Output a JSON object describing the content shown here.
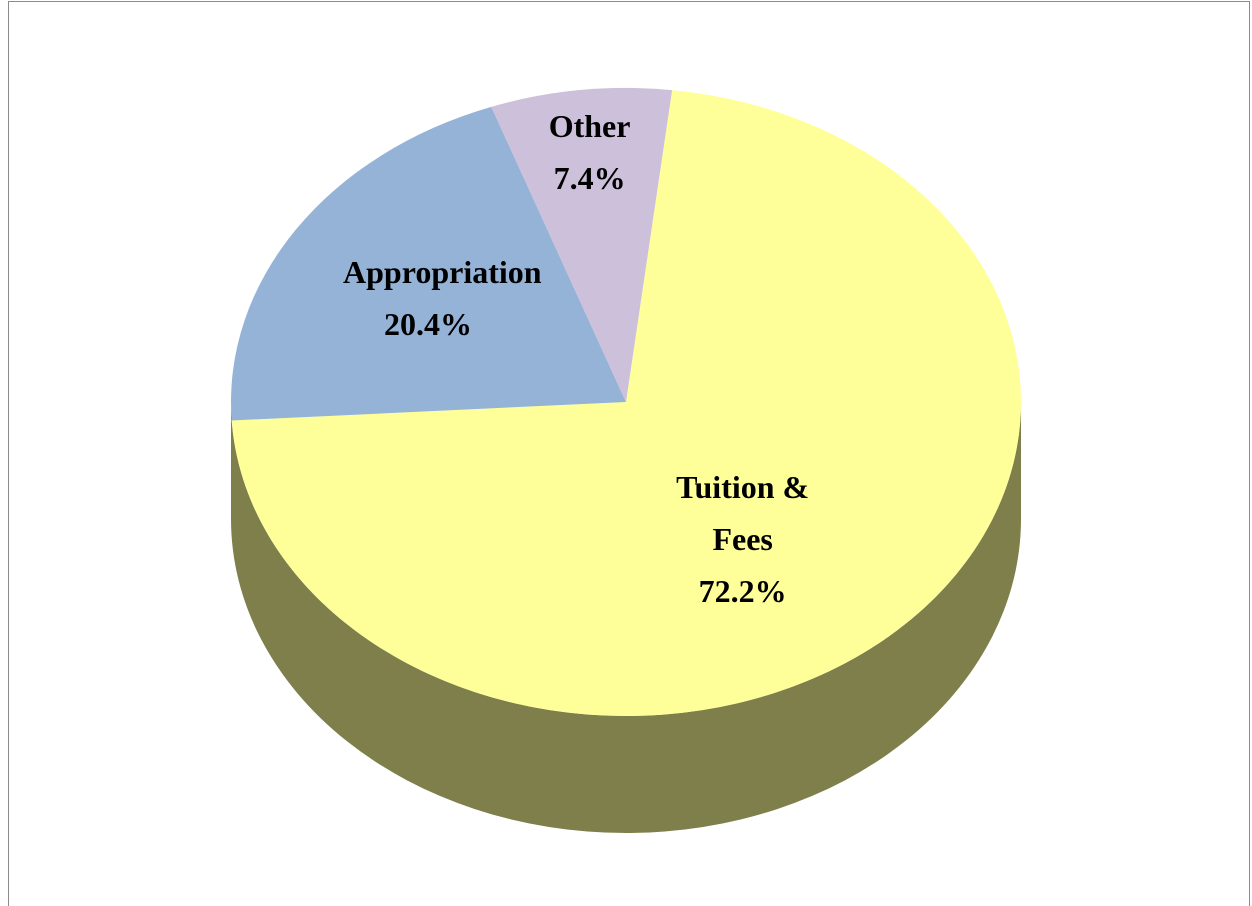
{
  "chart_data": {
    "type": "pie",
    "categories": [
      "Tuition & Fees",
      "Appropriation",
      "Other"
    ],
    "values": [
      72.2,
      20.4,
      7.4
    ],
    "value_labels": [
      "72.2%",
      "20.4%",
      "7.4%"
    ],
    "colors": [
      "#ffff99",
      "#95b3d7",
      "#ccc0da"
    ]
  }
}
